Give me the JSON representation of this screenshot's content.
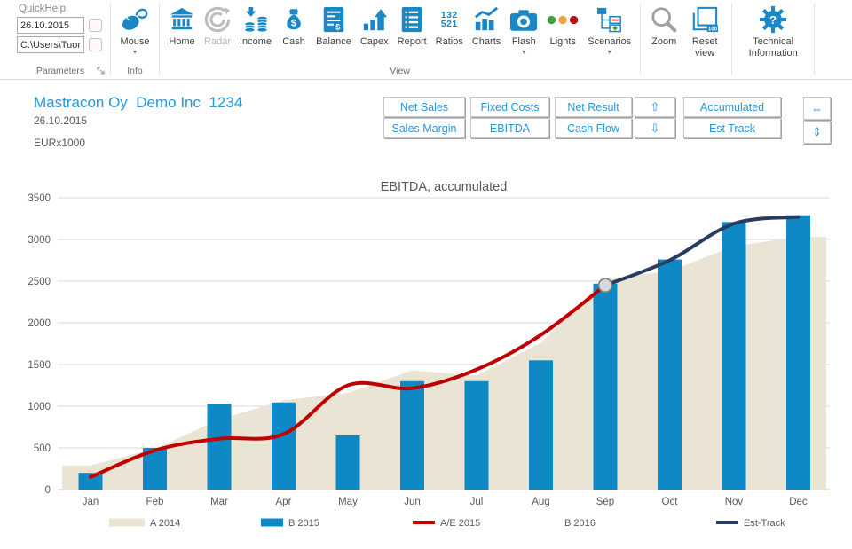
{
  "ribbon": {
    "parameters": {
      "quickhelp_label": "QuickHelp",
      "date_value": "26.10.2015",
      "path_value": "C:\\Users\\Tuor",
      "group_label": "Parameters"
    },
    "info": {
      "mouse_label": "Mouse",
      "group_label": "Info"
    },
    "view": {
      "group_label": "View",
      "items": [
        "Home",
        "Radar",
        "Income",
        "Cash",
        "Balance",
        "Capex",
        "Report",
        "Ratios",
        "Charts",
        "Flash",
        "Lights",
        "Scenarios"
      ],
      "ratios_icon_lines": [
        "132",
        "521"
      ]
    },
    "zoom_group": {
      "zoom_label": "Zoom",
      "reset_label": "Reset view"
    },
    "tech_group": {
      "tech_label": "Technical Information"
    }
  },
  "icons": {
    "chevron_down": "▾"
  },
  "header": {
    "title": "Mastracon Oy  Demo Inc  1234",
    "date": "26.10.2015",
    "unit": "EURx1000"
  },
  "panel": {
    "net_sales": "Net Sales",
    "fixed_costs": "Fixed Costs",
    "net_result": "Net Result",
    "sales_margin": "Sales Margin",
    "ebitda": "EBITDA",
    "cash_flow": "Cash Flow",
    "up": "⇧",
    "down": "⇩",
    "accumulated": "Accumulated",
    "est_track": "Est Track",
    "h_resize": "⇔",
    "v_resize": "⇕"
  },
  "colors": {
    "accent_blue": "#2b96d4",
    "ribbon_icon_blue": "#1a87c6",
    "bar_blue": "#0f89c6",
    "area_beige": "#e9e4d3",
    "line_red": "#c00000",
    "line_navy": "#2a3b60"
  },
  "chart_data": {
    "type": "combo",
    "title": "EBITDA, accumulated",
    "categories": [
      "Jan",
      "Feb",
      "Mar",
      "Apr",
      "May",
      "Jun",
      "Jul",
      "Aug",
      "Sep",
      "Oct",
      "Nov",
      "Dec"
    ],
    "xlabel": "",
    "ylabel": "",
    "ylim": [
      0,
      3500
    ],
    "ytick_step": 500,
    "grid": true,
    "legend_position": "bottom",
    "series": [
      {
        "name": "A 2014",
        "type": "area",
        "color": "#e9e4d3",
        "values": [
          290,
          490,
          840,
          1070,
          1160,
          1430,
          1370,
          1760,
          2530,
          2620,
          2920,
          3030
        ]
      },
      {
        "name": "B 2015",
        "type": "bar",
        "color": "#0f89c6",
        "values": [
          200,
          500,
          1030,
          1045,
          650,
          1300,
          1300,
          1550,
          2470,
          2760,
          3210,
          3290
        ]
      },
      {
        "name": "A/E 2015",
        "type": "line",
        "color": "#c00000",
        "values": [
          150,
          470,
          610,
          665,
          1250,
          1215,
          1440,
          1855,
          2450,
          null,
          null,
          null
        ]
      },
      {
        "name": "B 2016",
        "type": "none",
        "color": null,
        "values": [
          null,
          null,
          null,
          null,
          null,
          null,
          null,
          null,
          null,
          null,
          null,
          null
        ]
      },
      {
        "name": "Est-Track",
        "type": "line",
        "color": "#2a3b60",
        "values": [
          null,
          null,
          null,
          null,
          null,
          null,
          null,
          null,
          2450,
          2750,
          3190,
          3270
        ]
      }
    ],
    "marker": {
      "category": "Sep",
      "value": 2450,
      "fill": "#d9d9d9",
      "stroke": "#7f7f7f"
    }
  }
}
